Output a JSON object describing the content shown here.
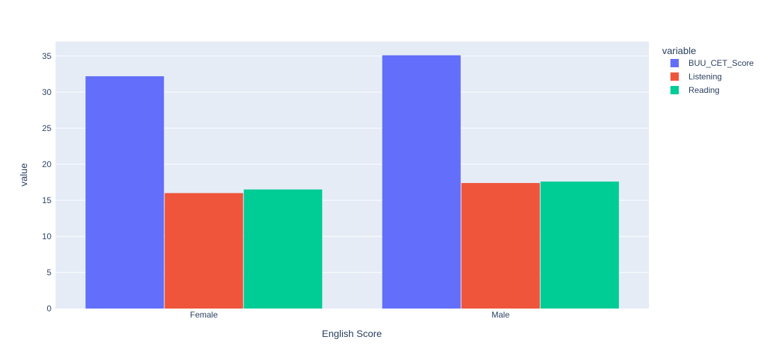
{
  "chart_data": {
    "type": "bar",
    "barmode": "group",
    "categories": [
      "Female",
      "Male"
    ],
    "series": [
      {
        "name": "BUU_CET_Score",
        "color": "#636efa",
        "values": [
          32.2,
          35.1
        ]
      },
      {
        "name": "Listening",
        "color": "#ef553b",
        "values": [
          16.0,
          17.4
        ]
      },
      {
        "name": "Reading",
        "color": "#00cc96",
        "values": [
          16.5,
          17.6
        ]
      }
    ],
    "xlabel": "English Score",
    "ylabel": "value",
    "ylim": [
      0,
      37
    ],
    "yticks": [
      0,
      5,
      10,
      15,
      20,
      25,
      30,
      35
    ],
    "grid": true,
    "legend": {
      "title": "variable",
      "placement": "right"
    },
    "plot_bg": "#e5ecf6"
  }
}
